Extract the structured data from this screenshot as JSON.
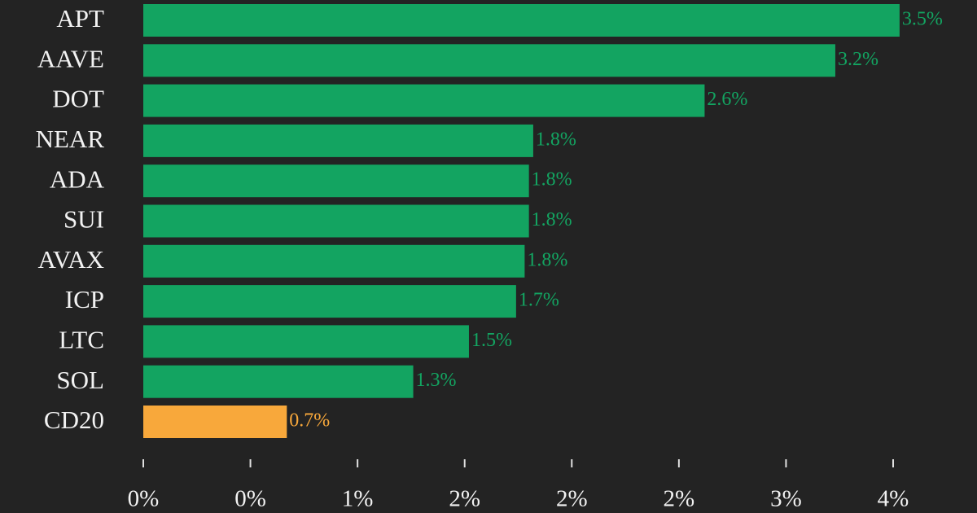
{
  "chart_data": {
    "type": "bar",
    "orientation": "horizontal",
    "categories": [
      "APT",
      "AAVE",
      "DOT",
      "NEAR",
      "ADA",
      "SUI",
      "AVAX",
      "ICP",
      "LTC",
      "SOL",
      "CD20"
    ],
    "values": [
      3.53,
      3.23,
      2.62,
      1.82,
      1.8,
      1.8,
      1.78,
      1.74,
      1.52,
      1.26,
      0.67
    ],
    "value_labels": [
      "3.5%",
      "3.2%",
      "2.6%",
      "1.8%",
      "1.8%",
      "1.8%",
      "1.8%",
      "1.7%",
      "1.5%",
      "1.3%",
      "0.7%"
    ],
    "colors": [
      "#13a461",
      "#13a461",
      "#13a461",
      "#13a461",
      "#13a461",
      "#13a461",
      "#13a461",
      "#13a461",
      "#13a461",
      "#13a461",
      "#f8a83b"
    ],
    "xlim": [
      0,
      3.5
    ],
    "xticks": [
      {
        "value": 0,
        "label": "0%"
      },
      {
        "value": 0.5,
        "label": "0%"
      },
      {
        "value": 1,
        "label": "1%"
      },
      {
        "value": 1.5,
        "label": "2%"
      },
      {
        "value": 2,
        "label": "2%"
      },
      {
        "value": 2.5,
        "label": "2%"
      },
      {
        "value": 3,
        "label": "3%"
      },
      {
        "value": 3.5,
        "label": "4%"
      }
    ],
    "grid": false
  }
}
